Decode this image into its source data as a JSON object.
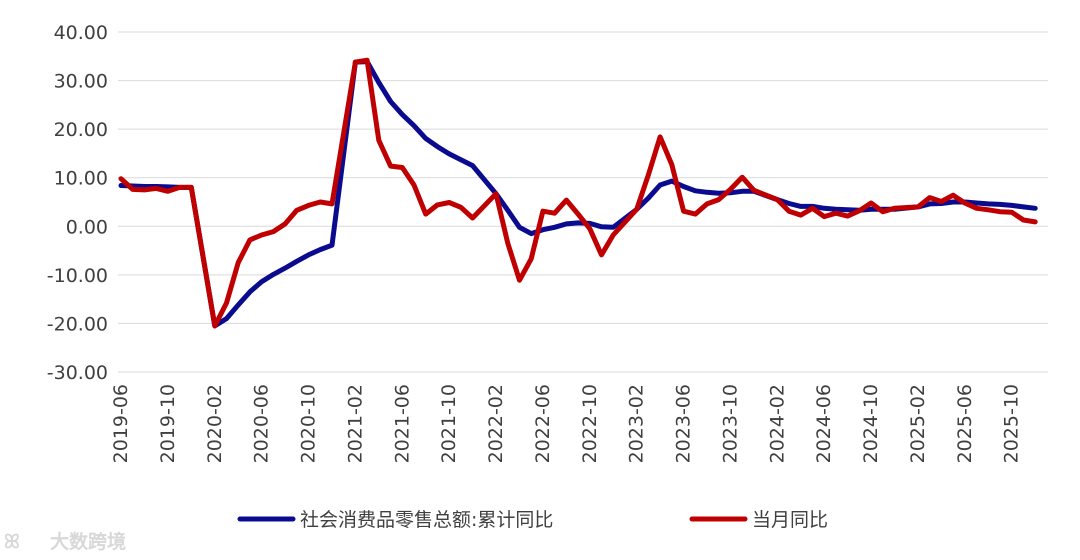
{
  "chart_data": {
    "type": "line",
    "title": "",
    "xlabel": "",
    "ylabel": "",
    "ylim": [
      -30,
      40
    ],
    "yticks": [
      "40.00",
      "30.00",
      "20.00",
      "10.00",
      "0.00",
      "-10.00",
      "-20.00",
      "-30.00"
    ],
    "x": [
      "2019-06",
      "2019-07",
      "2019-08",
      "2019-09",
      "2019-10",
      "2019-11",
      "2019-12",
      "2020-01",
      "2020-02",
      "2020-03",
      "2020-04",
      "2020-05",
      "2020-06",
      "2020-07",
      "2020-08",
      "2020-09",
      "2020-10",
      "2020-11",
      "2020-12",
      "2021-01",
      "2021-02",
      "2021-03",
      "2021-04",
      "2021-05",
      "2021-06",
      "2021-07",
      "2021-08",
      "2021-09",
      "2021-10",
      "2021-11",
      "2021-12",
      "2022-01",
      "2022-02",
      "2022-03",
      "2022-04",
      "2022-05",
      "2022-06",
      "2022-07",
      "2022-08",
      "2022-09",
      "2022-10",
      "2022-11",
      "2022-12",
      "2023-01",
      "2023-02",
      "2023-03",
      "2023-04",
      "2023-05",
      "2023-06",
      "2023-07",
      "2023-08",
      "2023-09",
      "2023-10",
      "2023-11",
      "2023-12",
      "2024-01",
      "2024-02",
      "2024-03",
      "2024-04",
      "2024-05",
      "2024-06",
      "2024-07",
      "2024-08",
      "2024-09",
      "2024-10",
      "2024-11",
      "2024-12",
      "2025-01",
      "2025-02",
      "2025-03",
      "2025-04",
      "2025-05",
      "2025-06",
      "2025-07",
      "2025-08",
      "2025-09",
      "2025-10",
      "2025-11",
      "2025-12"
    ],
    "xtick_labels": [
      "2019-06",
      "2019-10",
      "2020-02",
      "2020-06",
      "2020-10",
      "2021-02",
      "2021-06",
      "2021-10",
      "2022-02",
      "2022-06",
      "2022-10",
      "2023-02",
      "2023-06",
      "2023-10",
      "2024-02",
      "2024-06",
      "2024-10",
      "2025-02",
      "2025-06",
      "2025-10"
    ],
    "series": [
      {
        "name": "社会消费品零售总额:累计同比",
        "color": "#0b0b8f",
        "values": [
          8.4,
          8.3,
          8.2,
          8.2,
          8.1,
          8.0,
          8.0,
          null,
          -20.5,
          -19.0,
          -16.2,
          -13.5,
          -11.4,
          -9.9,
          -8.6,
          -7.2,
          -5.9,
          -4.8,
          -3.9,
          null,
          33.8,
          33.9,
          29.6,
          25.7,
          23.0,
          20.7,
          18.1,
          16.4,
          14.9,
          13.7,
          12.5,
          null,
          6.7,
          3.3,
          -0.2,
          -1.5,
          -0.7,
          -0.2,
          0.5,
          0.7,
          0.6,
          -0.1,
          -0.2,
          null,
          3.5,
          5.8,
          8.5,
          9.3,
          8.2,
          7.3,
          7.0,
          6.8,
          6.9,
          7.2,
          7.2,
          null,
          5.5,
          4.7,
          4.1,
          4.1,
          3.7,
          3.5,
          3.4,
          3.3,
          3.5,
          3.5,
          3.5,
          null,
          4.0,
          4.6,
          4.7,
          5.0,
          5.0,
          4.8,
          4.6,
          4.5,
          4.3,
          4.0,
          3.7
        ]
      },
      {
        "name": "当月同比",
        "color": "#c00000",
        "values": [
          9.8,
          7.6,
          7.5,
          7.8,
          7.2,
          8.0,
          8.0,
          null,
          -20.5,
          -15.8,
          -7.5,
          -2.8,
          -1.8,
          -1.1,
          0.5,
          3.3,
          4.3,
          5.0,
          4.6,
          null,
          33.8,
          34.2,
          17.7,
          12.4,
          12.1,
          8.5,
          2.5,
          4.4,
          4.9,
          3.9,
          1.7,
          null,
          6.7,
          -3.5,
          -11.1,
          -6.7,
          3.1,
          2.7,
          5.4,
          2.5,
          -0.5,
          -5.9,
          -1.8,
          null,
          3.5,
          10.6,
          18.4,
          12.7,
          3.1,
          2.5,
          4.6,
          5.5,
          7.6,
          10.1,
          7.4,
          null,
          5.5,
          3.1,
          2.3,
          3.7,
          2.0,
          2.7,
          2.1,
          3.2,
          4.8,
          3.0,
          3.7,
          null,
          4.0,
          5.9,
          5.1,
          6.4,
          4.8,
          3.7,
          3.4,
          3.0,
          2.9,
          1.3,
          0.9
        ]
      }
    ],
    "legend": "bottom",
    "grid": true
  },
  "watermark": "大数跨境",
  "watermark_logo": "ꕤ"
}
